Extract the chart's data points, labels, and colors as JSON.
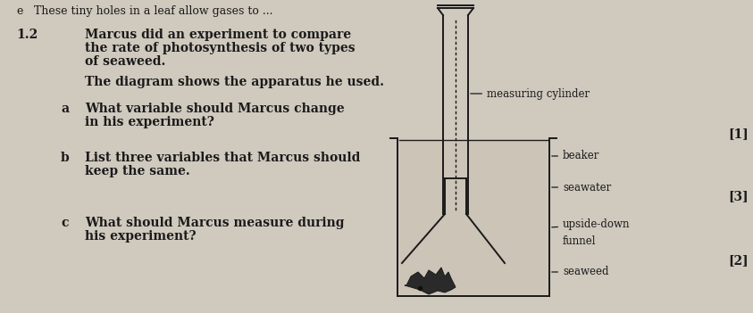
{
  "background_color": "#cfc9be",
  "top_text_e": "e",
  "top_text_rest": "These tiny holes in a leaf allow gases to ...",
  "question_number": "1.2",
  "question_text_line1": "Marcus did an experiment to compare",
  "question_text_line2": "the rate of photosynthesis of two types",
  "question_text_line3": "of seaweed.",
  "diagram_text": "The diagram shows the apparatus he used.",
  "qa": "a",
  "qb": "b",
  "qc": "c",
  "qa_text_line1": "What variable should Marcus change",
  "qa_text_line2": "in his experiment?",
  "qb_text_line1": "List three variables that Marcus should",
  "qb_text_line2": "keep the same.",
  "qc_text_line1": "What should Marcus measure during",
  "qc_text_line2": "his experiment?",
  "marks_a": "[1]",
  "marks_b": "[3]",
  "marks_c": "[2]",
  "label_measuring_cylinder": "measuring cylinder",
  "label_beaker": "beaker",
  "label_seawater": "seawater",
  "label_upside_down": "upside-down",
  "label_funnel": "funnel",
  "label_seaweed": "seaweed",
  "text_color": "#1a1a1a",
  "diagram_line_color": "#1a1a1a"
}
